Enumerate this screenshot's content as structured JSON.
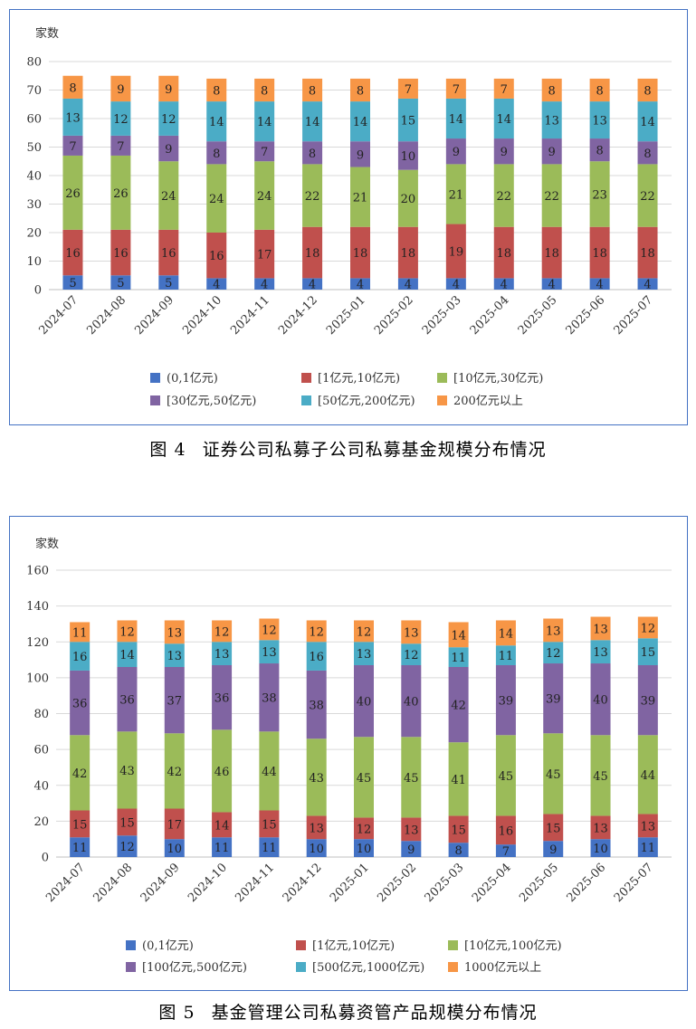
{
  "charts": [
    {
      "caption": {
        "num": "图 4",
        "text": "证券公司私募子公司私募基金规模分布情况"
      },
      "chart_data": {
        "type": "bar",
        "stacked": true,
        "ylabel": "家数",
        "ylim": [
          0,
          80
        ],
        "yticks": [
          0,
          10,
          20,
          30,
          40,
          50,
          60,
          70,
          80
        ],
        "grid": true,
        "legend": "bottom",
        "categories": [
          "2024-07",
          "2024-08",
          "2024-09",
          "2024-10",
          "2024-11",
          "2024-12",
          "2025-01",
          "2025-02",
          "2025-03",
          "2025-04",
          "2025-05",
          "2025-06",
          "2025-07"
        ],
        "series": [
          {
            "name": "(0,1亿元)",
            "color": "#4472c4",
            "values": [
              5,
              5,
              5,
              4,
              4,
              4,
              4,
              4,
              4,
              4,
              4,
              4,
              4
            ]
          },
          {
            "name": "[1亿元,10亿元)",
            "color": "#c0504d",
            "values": [
              16,
              16,
              16,
              16,
              17,
              18,
              18,
              18,
              19,
              18,
              18,
              18,
              18
            ]
          },
          {
            "name": "[10亿元,30亿元)",
            "color": "#9bbb59",
            "values": [
              26,
              26,
              24,
              24,
              24,
              22,
              21,
              20,
              21,
              22,
              22,
              23,
              22
            ]
          },
          {
            "name": "[30亿元,50亿元)",
            "color": "#8064a2",
            "values": [
              7,
              7,
              9,
              8,
              7,
              8,
              9,
              10,
              9,
              9,
              9,
              8,
              8
            ]
          },
          {
            "name": "[50亿元,200亿元)",
            "color": "#4bacc6",
            "values": [
              13,
              12,
              12,
              14,
              14,
              14,
              14,
              15,
              14,
              14,
              13,
              13,
              14
            ]
          },
          {
            "name": "200亿元以上",
            "color": "#f79646",
            "values": [
              8,
              9,
              9,
              8,
              8,
              8,
              8,
              7,
              7,
              7,
              8,
              8,
              8
            ]
          }
        ]
      }
    },
    {
      "caption": {
        "num": "图 5",
        "text": "基金管理公司私募资管产品规模分布情况"
      },
      "chart_data": {
        "type": "bar",
        "stacked": true,
        "ylabel": "家数",
        "ylim": [
          0,
          160
        ],
        "yticks": [
          0,
          20,
          40,
          60,
          80,
          100,
          120,
          140,
          160
        ],
        "grid": true,
        "legend": "bottom",
        "categories": [
          "2024-07",
          "2024-08",
          "2024-09",
          "2024-10",
          "2024-11",
          "2024-12",
          "2025-01",
          "2025-02",
          "2025-03",
          "2025-04",
          "2025-05",
          "2025-06",
          "2025-07"
        ],
        "series": [
          {
            "name": "(0,1亿元)",
            "color": "#4472c4",
            "values": [
              11,
              12,
              10,
              11,
              11,
              10,
              10,
              9,
              8,
              7,
              9,
              10,
              11
            ]
          },
          {
            "name": "[1亿元,10亿元)",
            "color": "#c0504d",
            "values": [
              15,
              15,
              17,
              14,
              15,
              13,
              12,
              13,
              15,
              16,
              15,
              13,
              13
            ]
          },
          {
            "name": "[10亿元,100亿元)",
            "color": "#9bbb59",
            "values": [
              42,
              43,
              42,
              46,
              44,
              43,
              45,
              45,
              41,
              45,
              45,
              45,
              44
            ]
          },
          {
            "name": "[100亿元,500亿元)",
            "color": "#8064a2",
            "values": [
              36,
              36,
              37,
              36,
              38,
              38,
              40,
              40,
              42,
              39,
              39,
              40,
              39
            ]
          },
          {
            "name": "[500亿元,1000亿元)",
            "color": "#4bacc6",
            "values": [
              16,
              14,
              13,
              13,
              13,
              16,
              13,
              12,
              11,
              11,
              12,
              13,
              15
            ]
          },
          {
            "name": "1000亿元以上",
            "color": "#f79646",
            "values": [
              11,
              12,
              13,
              12,
              12,
              12,
              12,
              13,
              14,
              14,
              13,
              13,
              12
            ]
          }
        ]
      }
    }
  ]
}
